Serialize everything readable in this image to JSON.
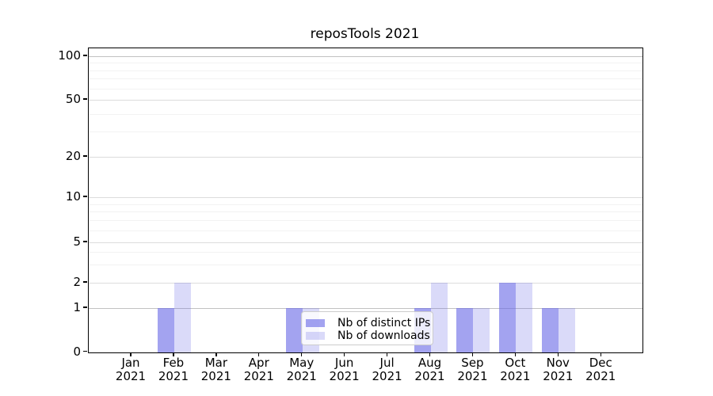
{
  "figure": {
    "background": "#ffffff",
    "title": "reposTools 2021"
  },
  "chart_data": {
    "type": "bar",
    "title": "reposTools 2021",
    "categories": [
      {
        "month": "Jan",
        "year": "2021"
      },
      {
        "month": "Feb",
        "year": "2021"
      },
      {
        "month": "Mar",
        "year": "2021"
      },
      {
        "month": "Apr",
        "year": "2021"
      },
      {
        "month": "May",
        "year": "2021"
      },
      {
        "month": "Jun",
        "year": "2021"
      },
      {
        "month": "Jul",
        "year": "2021"
      },
      {
        "month": "Aug",
        "year": "2021"
      },
      {
        "month": "Sep",
        "year": "2021"
      },
      {
        "month": "Oct",
        "year": "2021"
      },
      {
        "month": "Nov",
        "year": "2021"
      },
      {
        "month": "Dec",
        "year": "2021"
      }
    ],
    "series": [
      {
        "name": "Nb of distinct IPs",
        "key": "distinct-ips",
        "base_color": "#6666e6",
        "alpha": 0.6,
        "fill": "rgba(102,102,230,0.6)",
        "values": [
          0,
          1,
          0,
          0,
          1,
          0,
          0,
          1,
          1,
          2,
          1,
          0
        ]
      },
      {
        "name": "Nb of downloads",
        "key": "downloads",
        "base_color": "#6666e6",
        "alpha": 0.24,
        "fill": "rgba(102,102,230,0.24)",
        "values": [
          0,
          2,
          0,
          0,
          1,
          0,
          0,
          2,
          1,
          2,
          1,
          0
        ]
      }
    ],
    "xlabel": "",
    "ylabel": "",
    "y_scale": "symlog",
    "ylim": [
      0,
      100
    ],
    "y_ticks": [
      0,
      1,
      2,
      5,
      10,
      20,
      50,
      100
    ],
    "y_minor_ticks": [
      3,
      4,
      6,
      7,
      8,
      9,
      30,
      40,
      60,
      70,
      80,
      90
    ],
    "grid": "on",
    "legend": {
      "position": "lower center",
      "entries": [
        "Nb of distinct IPs",
        "Nb of downloads"
      ]
    },
    "colors": {
      "axis": "#000000",
      "grid_major": "#dcdcdc",
      "grid_major_emphasis": "#c2c2c2",
      "grid_minor": "#f2f2f2",
      "bar_dark_rendered": "#a4a4f0",
      "bar_light_rendered": "#dcdcf8"
    }
  }
}
